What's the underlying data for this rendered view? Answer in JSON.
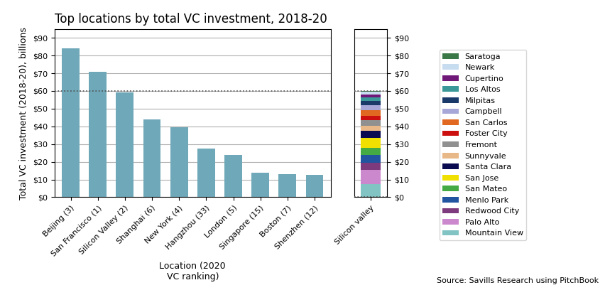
{
  "chart_data": [
    {
      "type": "bar",
      "title": "Top locations by total VC investment, 2018-20",
      "ylabel": "Total VC investment (2018-20), billions",
      "xlabel": "Location (2020\nVC ranking)",
      "categories": [
        "Beijing (3)",
        "San Francisco (1)",
        "Silicon Valley (2)",
        "Shanghai (6)",
        "New York (4)",
        "Hangzhou (33)",
        "London (5)",
        "Singapore (15)",
        "Boston (7)",
        "Shenzhen (12)"
      ],
      "values": [
        84,
        71,
        59,
        44,
        39.5,
        27.5,
        24,
        14,
        13,
        12.5
      ],
      "color": "#6fa8b8",
      "ylim": [
        0,
        95
      ],
      "yticks": [
        {
          "value": 0,
          "label": "$0"
        },
        {
          "value": 10,
          "label": "$10"
        },
        {
          "value": 20,
          "label": "$20"
        },
        {
          "value": 30,
          "label": "$30"
        },
        {
          "value": 40,
          "label": "$40"
        },
        {
          "value": 50,
          "label": "$50"
        },
        {
          "value": 60,
          "label": "$60"
        },
        {
          "value": 70,
          "label": "$70"
        },
        {
          "value": 80,
          "label": "$80"
        },
        {
          "value": 90,
          "label": "$90"
        }
      ],
      "hlines": [
        60
      ],
      "grid": true,
      "annotations": [
        "Source: Savills Research using PitchBook"
      ]
    },
    {
      "type": "bar",
      "stacked": true,
      "categories": [
        "Silicon valley"
      ],
      "series": [
        {
          "name": "Mountain View",
          "color": "#82c4c4",
          "values": [
            7.5
          ]
        },
        {
          "name": "Palo Alto",
          "color": "#cc88cc",
          "values": [
            8.0
          ]
        },
        {
          "name": "Redwood City",
          "color": "#7d3b7d",
          "values": [
            4.0
          ]
        },
        {
          "name": "Menlo Park",
          "color": "#2255a0",
          "values": [
            4.5
          ]
        },
        {
          "name": "San Mateo",
          "color": "#44aa44",
          "values": [
            4.0
          ]
        },
        {
          "name": "San Jose",
          "color": "#f0e000",
          "values": [
            5.5
          ]
        },
        {
          "name": "Santa Clara",
          "color": "#0a0a50",
          "values": [
            4.0
          ]
        },
        {
          "name": "Sunnyvale",
          "color": "#e8b888",
          "values": [
            3.0
          ]
        },
        {
          "name": "Fremont",
          "color": "#909090",
          "values": [
            3.0
          ]
        },
        {
          "name": "Foster City",
          "color": "#cc1010",
          "values": [
            2.5
          ]
        },
        {
          "name": "San Carlos",
          "color": "#e06820",
          "values": [
            3.0
          ]
        },
        {
          "name": "Campbell",
          "color": "#a8a8d8",
          "values": [
            3.0
          ]
        },
        {
          "name": "Milpitas",
          "color": "#1a3a6a",
          "values": [
            2.5
          ]
        },
        {
          "name": "Los Altos",
          "color": "#3a9898",
          "values": [
            2.0
          ]
        },
        {
          "name": "Cupertino",
          "color": "#701878",
          "values": [
            1.5
          ]
        },
        {
          "name": "Newark",
          "color": "#c8dcf0",
          "values": [
            1.5
          ]
        },
        {
          "name": "Saratoga",
          "color": "#3a7848",
          "values": [
            0.5
          ]
        }
      ],
      "ylim": [
        0,
        95
      ],
      "yticks": [
        {
          "value": 0,
          "label": "$0"
        },
        {
          "value": 10,
          "label": "$10"
        },
        {
          "value": 20,
          "label": "$20"
        },
        {
          "value": 30,
          "label": "$30"
        },
        {
          "value": 40,
          "label": "$40"
        },
        {
          "value": 50,
          "label": "$50"
        },
        {
          "value": 60,
          "label": "$60"
        },
        {
          "value": 70,
          "label": "$70"
        },
        {
          "value": 80,
          "label": "$80"
        },
        {
          "value": 90,
          "label": "$90"
        }
      ],
      "hlines": [
        0,
        60
      ],
      "grid": true,
      "legend": "center left"
    }
  ]
}
